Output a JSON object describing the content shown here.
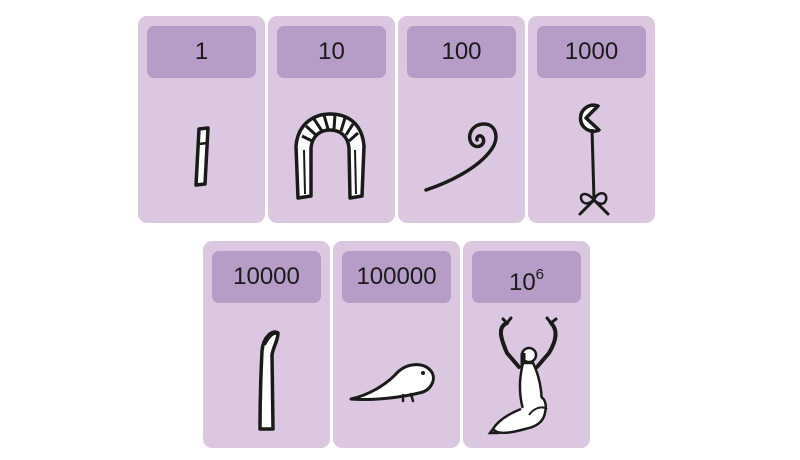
{
  "cards": [
    {
      "label": "1",
      "glyph": "stroke-icon"
    },
    {
      "label": "10",
      "glyph": "heel-bone-icon"
    },
    {
      "label": "100",
      "glyph": "coil-of-rope-icon"
    },
    {
      "label": "1000",
      "glyph": "lotus-plant-icon"
    },
    {
      "label": "10000",
      "glyph": "finger-icon"
    },
    {
      "label": "100000",
      "glyph": "tadpole-icon"
    },
    {
      "label_base": "10",
      "label_exp": "6",
      "glyph": "kneeling-god-icon"
    }
  ],
  "colors": {
    "card_background": "#dcc7e1",
    "label_background": "#b69dc8",
    "ink": "#1a1a1a"
  }
}
